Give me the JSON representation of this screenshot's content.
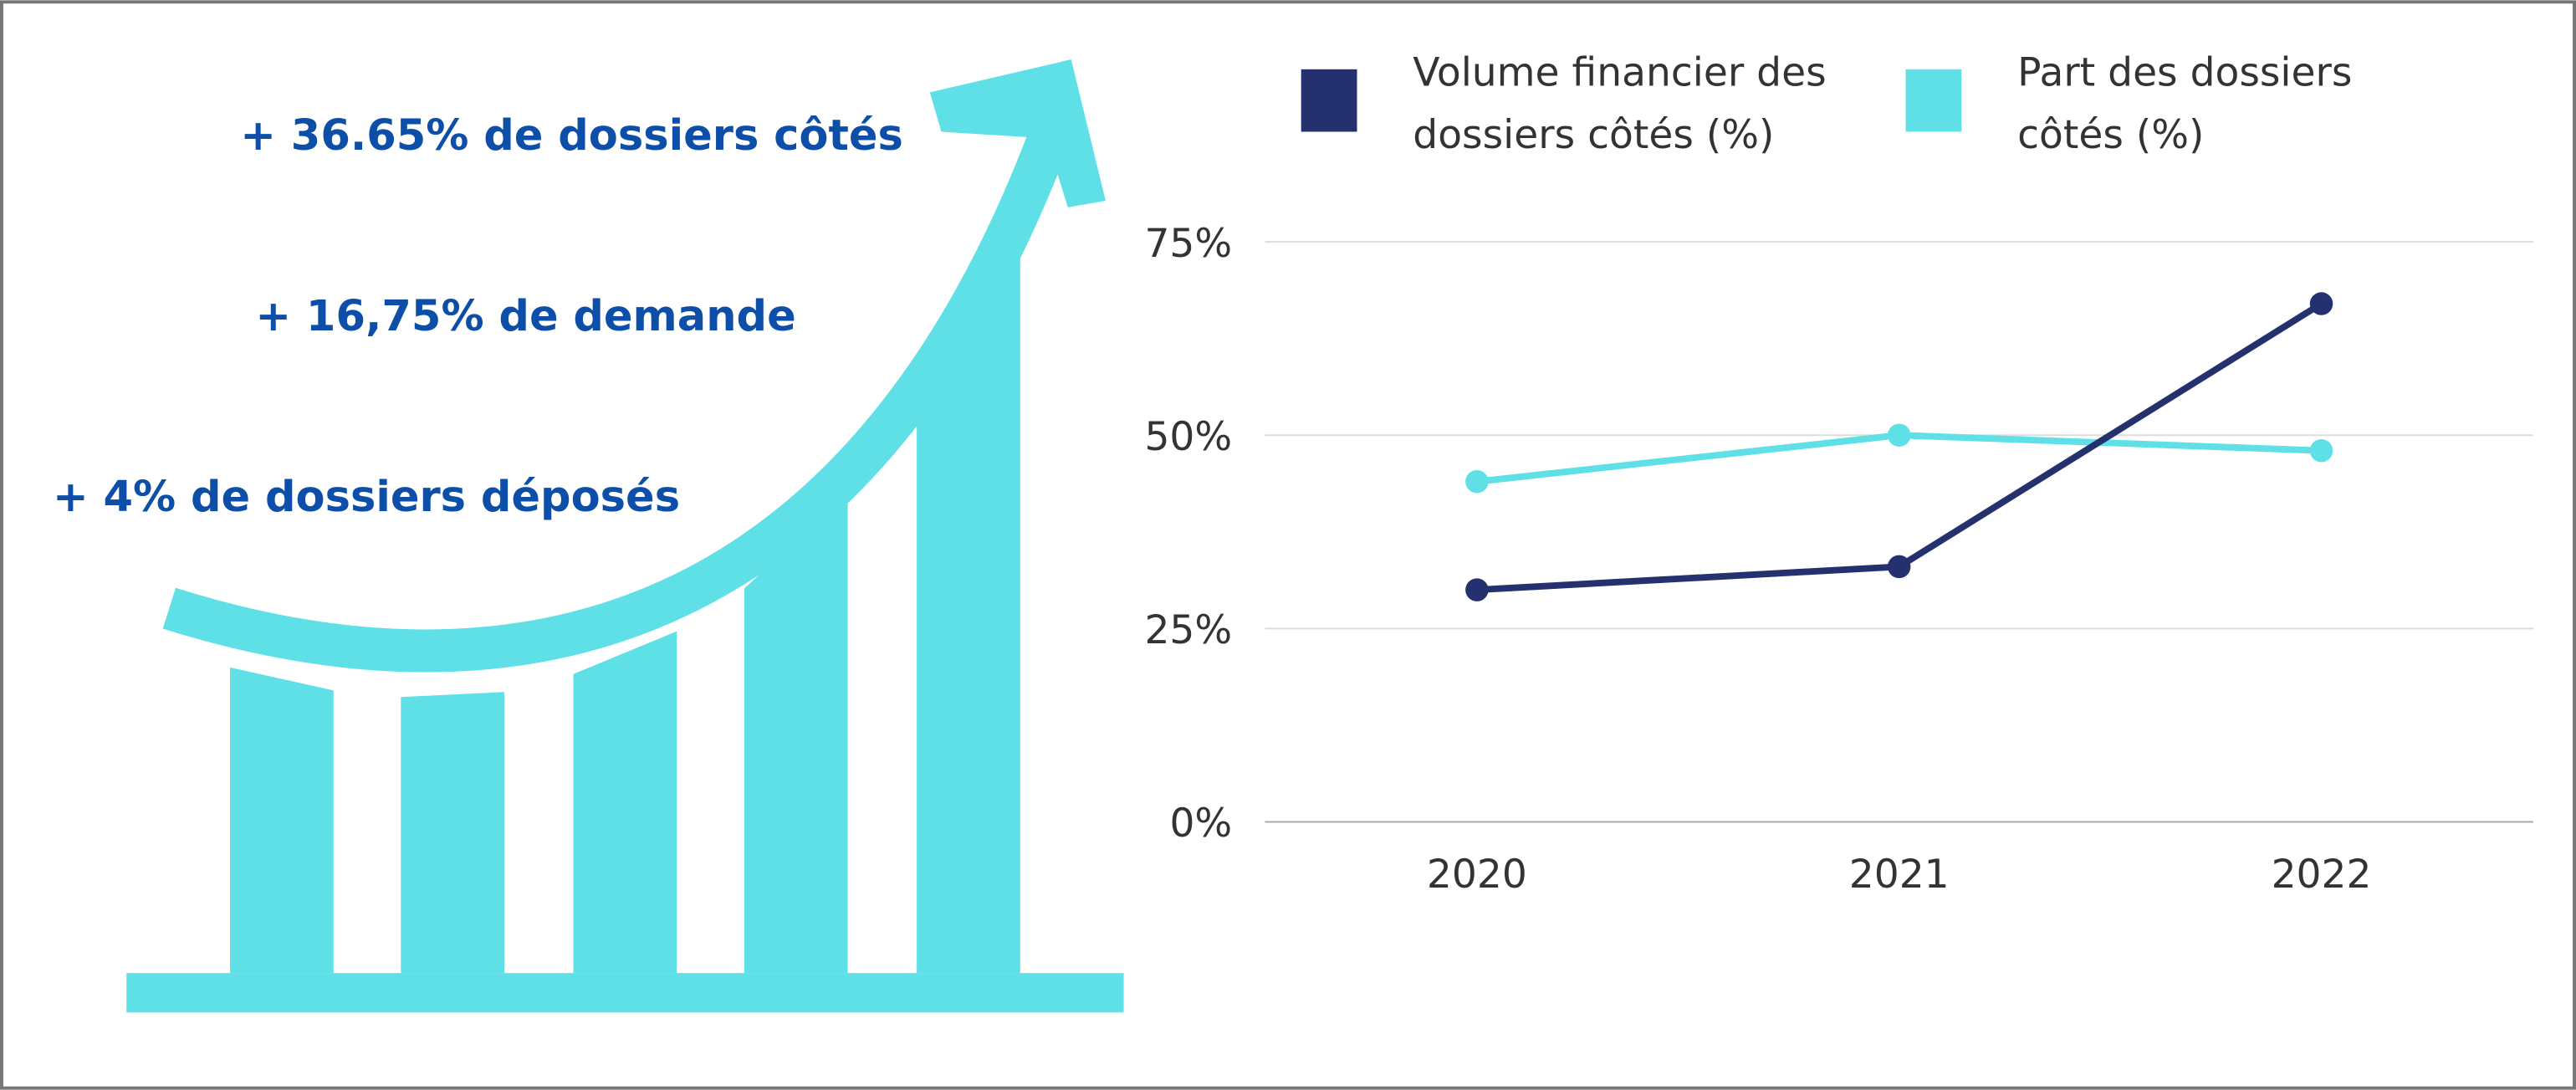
{
  "chart_data": {
    "type": "line",
    "annotations": [
      "+ 36.65% de dossiers côtés",
      "+ 16,75% de demande",
      "+ 4% de dossiers déposés"
    ],
    "categories": [
      "2020",
      "2021",
      "2022"
    ],
    "series": [
      {
        "name": "Volume financier des dossiers côtés (%)",
        "color": "#25316f",
        "values": [
          30,
          33,
          67
        ]
      },
      {
        "name": "Part des dossiers côtés (%)",
        "color": "#5fe0e6",
        "values": [
          44,
          50,
          48
        ]
      }
    ],
    "ylim": [
      0,
      75
    ],
    "yticks": [
      {
        "value": 0,
        "label": "0%"
      },
      {
        "value": 25,
        "label": "25%"
      },
      {
        "value": 50,
        "label": "50%"
      },
      {
        "value": 75,
        "label": "75%"
      }
    ],
    "grid": true
  }
}
